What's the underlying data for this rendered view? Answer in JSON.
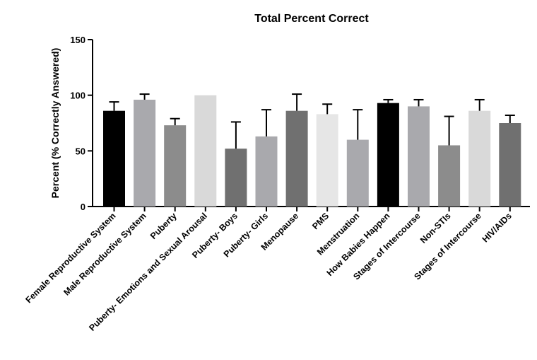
{
  "chart_data": {
    "type": "bar",
    "title": "Total Percent Correct",
    "ylabel": "Percent (% Correctly Answered)",
    "xlabel": "",
    "ylim": [
      0,
      150
    ],
    "yticks": [
      "0",
      "50",
      "100",
      "150"
    ],
    "grid": false,
    "categories": [
      "Female Reproductive System",
      "Male Reproductive System",
      "Puberty",
      "Puberty- Emotions and Sexual Arousal",
      "Puberty- Boys",
      "Puberty- Girls",
      "Menopause",
      "PMS",
      "Menstruation",
      "How Babies Happen",
      "Stages of Intercourse",
      "Non-STIs",
      "Stages of Intercourse",
      "HIV/AIDs"
    ],
    "values": [
      86,
      96,
      73,
      100,
      52,
      63,
      86,
      83,
      60,
      93,
      90,
      55,
      86,
      75
    ],
    "error_upper": [
      94,
      101,
      79,
      100,
      76,
      87,
      101,
      92,
      87,
      96,
      96,
      81,
      96,
      82
    ],
    "colors": [
      "#000000",
      "#a9a9ad",
      "#8c8c8c",
      "#d9d9d9",
      "#707070",
      "#a9a9ad",
      "#707070",
      "#e6e6e6",
      "#a9a9ad",
      "#000000",
      "#a9a9ad",
      "#8c8c8c",
      "#d9d9d9",
      "#707070"
    ]
  }
}
